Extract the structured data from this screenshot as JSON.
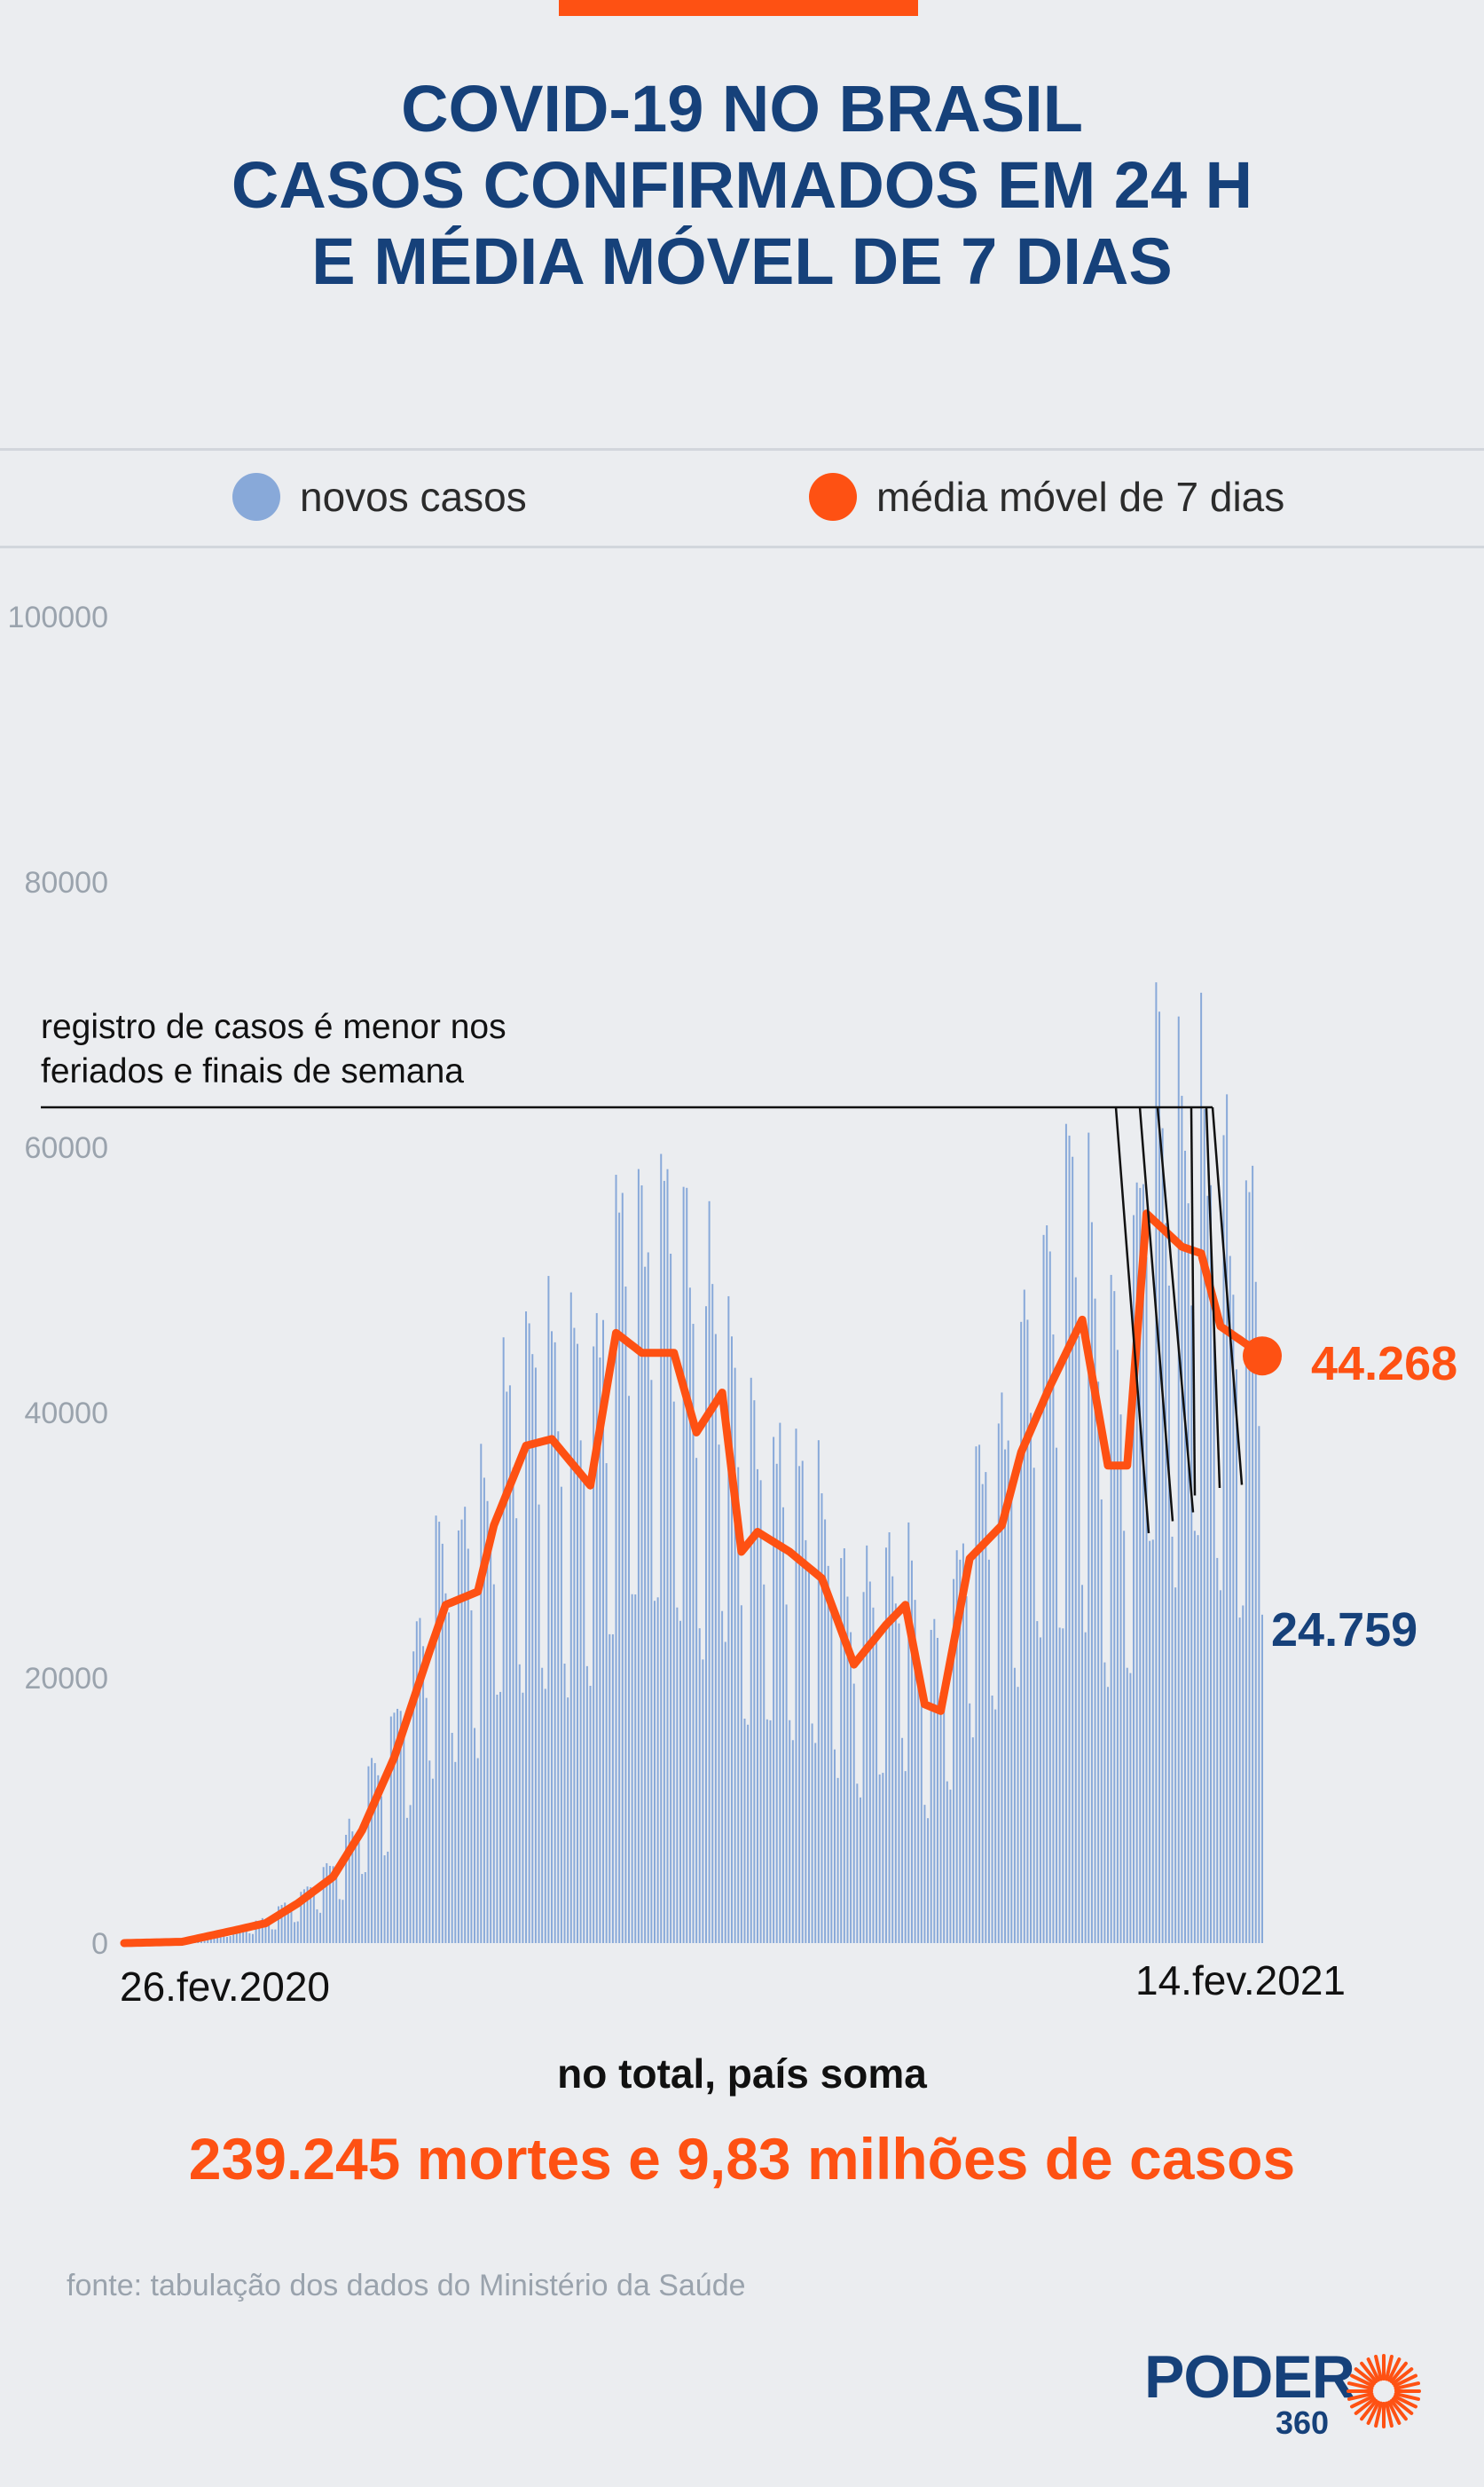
{
  "header": {
    "title_lines": [
      "COVID-19 NO BRASIL",
      "CASOS CONFIRMADOS EM 24 H",
      "E MÉDIA MÓVEL DE 7 DIAS"
    ]
  },
  "legend": {
    "bars_label": "novos casos",
    "line_label": "média móvel de 7 dias"
  },
  "colors": {
    "bars": "#88a9d9",
    "line": "#fe5113",
    "title": "#16417a"
  },
  "chart_data": {
    "type": "bar",
    "title": "",
    "xlabel": "",
    "ylabel": "",
    "ylim": [
      0,
      100000
    ],
    "yticks": [
      0,
      20000,
      40000,
      60000,
      80000,
      100000
    ],
    "x_start_label": "26.fev.2020",
    "x_end_label": "14.fev.2021",
    "moving_average_anchors": [
      [
        "2020-02-26",
        0
      ],
      [
        "2020-03-15",
        100
      ],
      [
        "2020-04-01",
        1000
      ],
      [
        "2020-04-10",
        1500
      ],
      [
        "2020-04-20",
        3000
      ],
      [
        "2020-05-01",
        5000
      ],
      [
        "2020-05-10",
        8500
      ],
      [
        "2020-05-20",
        14000
      ],
      [
        "2020-05-31",
        22000
      ],
      [
        "2020-06-05",
        25500
      ],
      [
        "2020-06-15",
        26500
      ],
      [
        "2020-06-20",
        31500
      ],
      [
        "2020-06-30",
        37500
      ],
      [
        "2020-07-08",
        38000
      ],
      [
        "2020-07-20",
        34500
      ],
      [
        "2020-07-28",
        46000
      ],
      [
        "2020-08-05",
        44500
      ],
      [
        "2020-08-15",
        44500
      ],
      [
        "2020-08-22",
        38500
      ],
      [
        "2020-08-30",
        41500
      ],
      [
        "2020-09-05",
        29500
      ],
      [
        "2020-09-10",
        31000
      ],
      [
        "2020-09-20",
        29500
      ],
      [
        "2020-09-30",
        27500
      ],
      [
        "2020-10-10",
        21000
      ],
      [
        "2020-10-20",
        24000
      ],
      [
        "2020-10-26",
        25500
      ],
      [
        "2020-11-01",
        18000
      ],
      [
        "2020-11-06",
        17500
      ],
      [
        "2020-11-15",
        29000
      ],
      [
        "2020-11-25",
        31500
      ],
      [
        "2020-12-01",
        37000
      ],
      [
        "2020-12-10",
        42000
      ],
      [
        "2020-12-20",
        47000
      ],
      [
        "2020-12-28",
        36000
      ],
      [
        "2021-01-03",
        36000
      ],
      [
        "2021-01-09",
        55000
      ],
      [
        "2021-01-20",
        52500
      ],
      [
        "2021-01-26",
        52000
      ],
      [
        "2021-02-01",
        46500
      ],
      [
        "2021-02-10",
        45000
      ],
      [
        "2021-02-14",
        44268
      ]
    ],
    "annotation": "registro de casos é menor nos\nferiados e finais de semana",
    "last_ma_label": "44.268",
    "last_cases_label": "24.759",
    "series": [
      {
        "name": "novos casos"
      },
      {
        "name": "média móvel de 7 dias"
      }
    ],
    "daily_cases_note": "daily values generated from moving average with weekly reporting cycle"
  },
  "footer": {
    "total_label": "no total, país soma",
    "total_value": "239.245 mortes e 9,83 milhões de casos",
    "source": "fonte: tabulação dos dados do Ministério da Saúde",
    "logo_text": "PODER",
    "logo_num": "360"
  }
}
